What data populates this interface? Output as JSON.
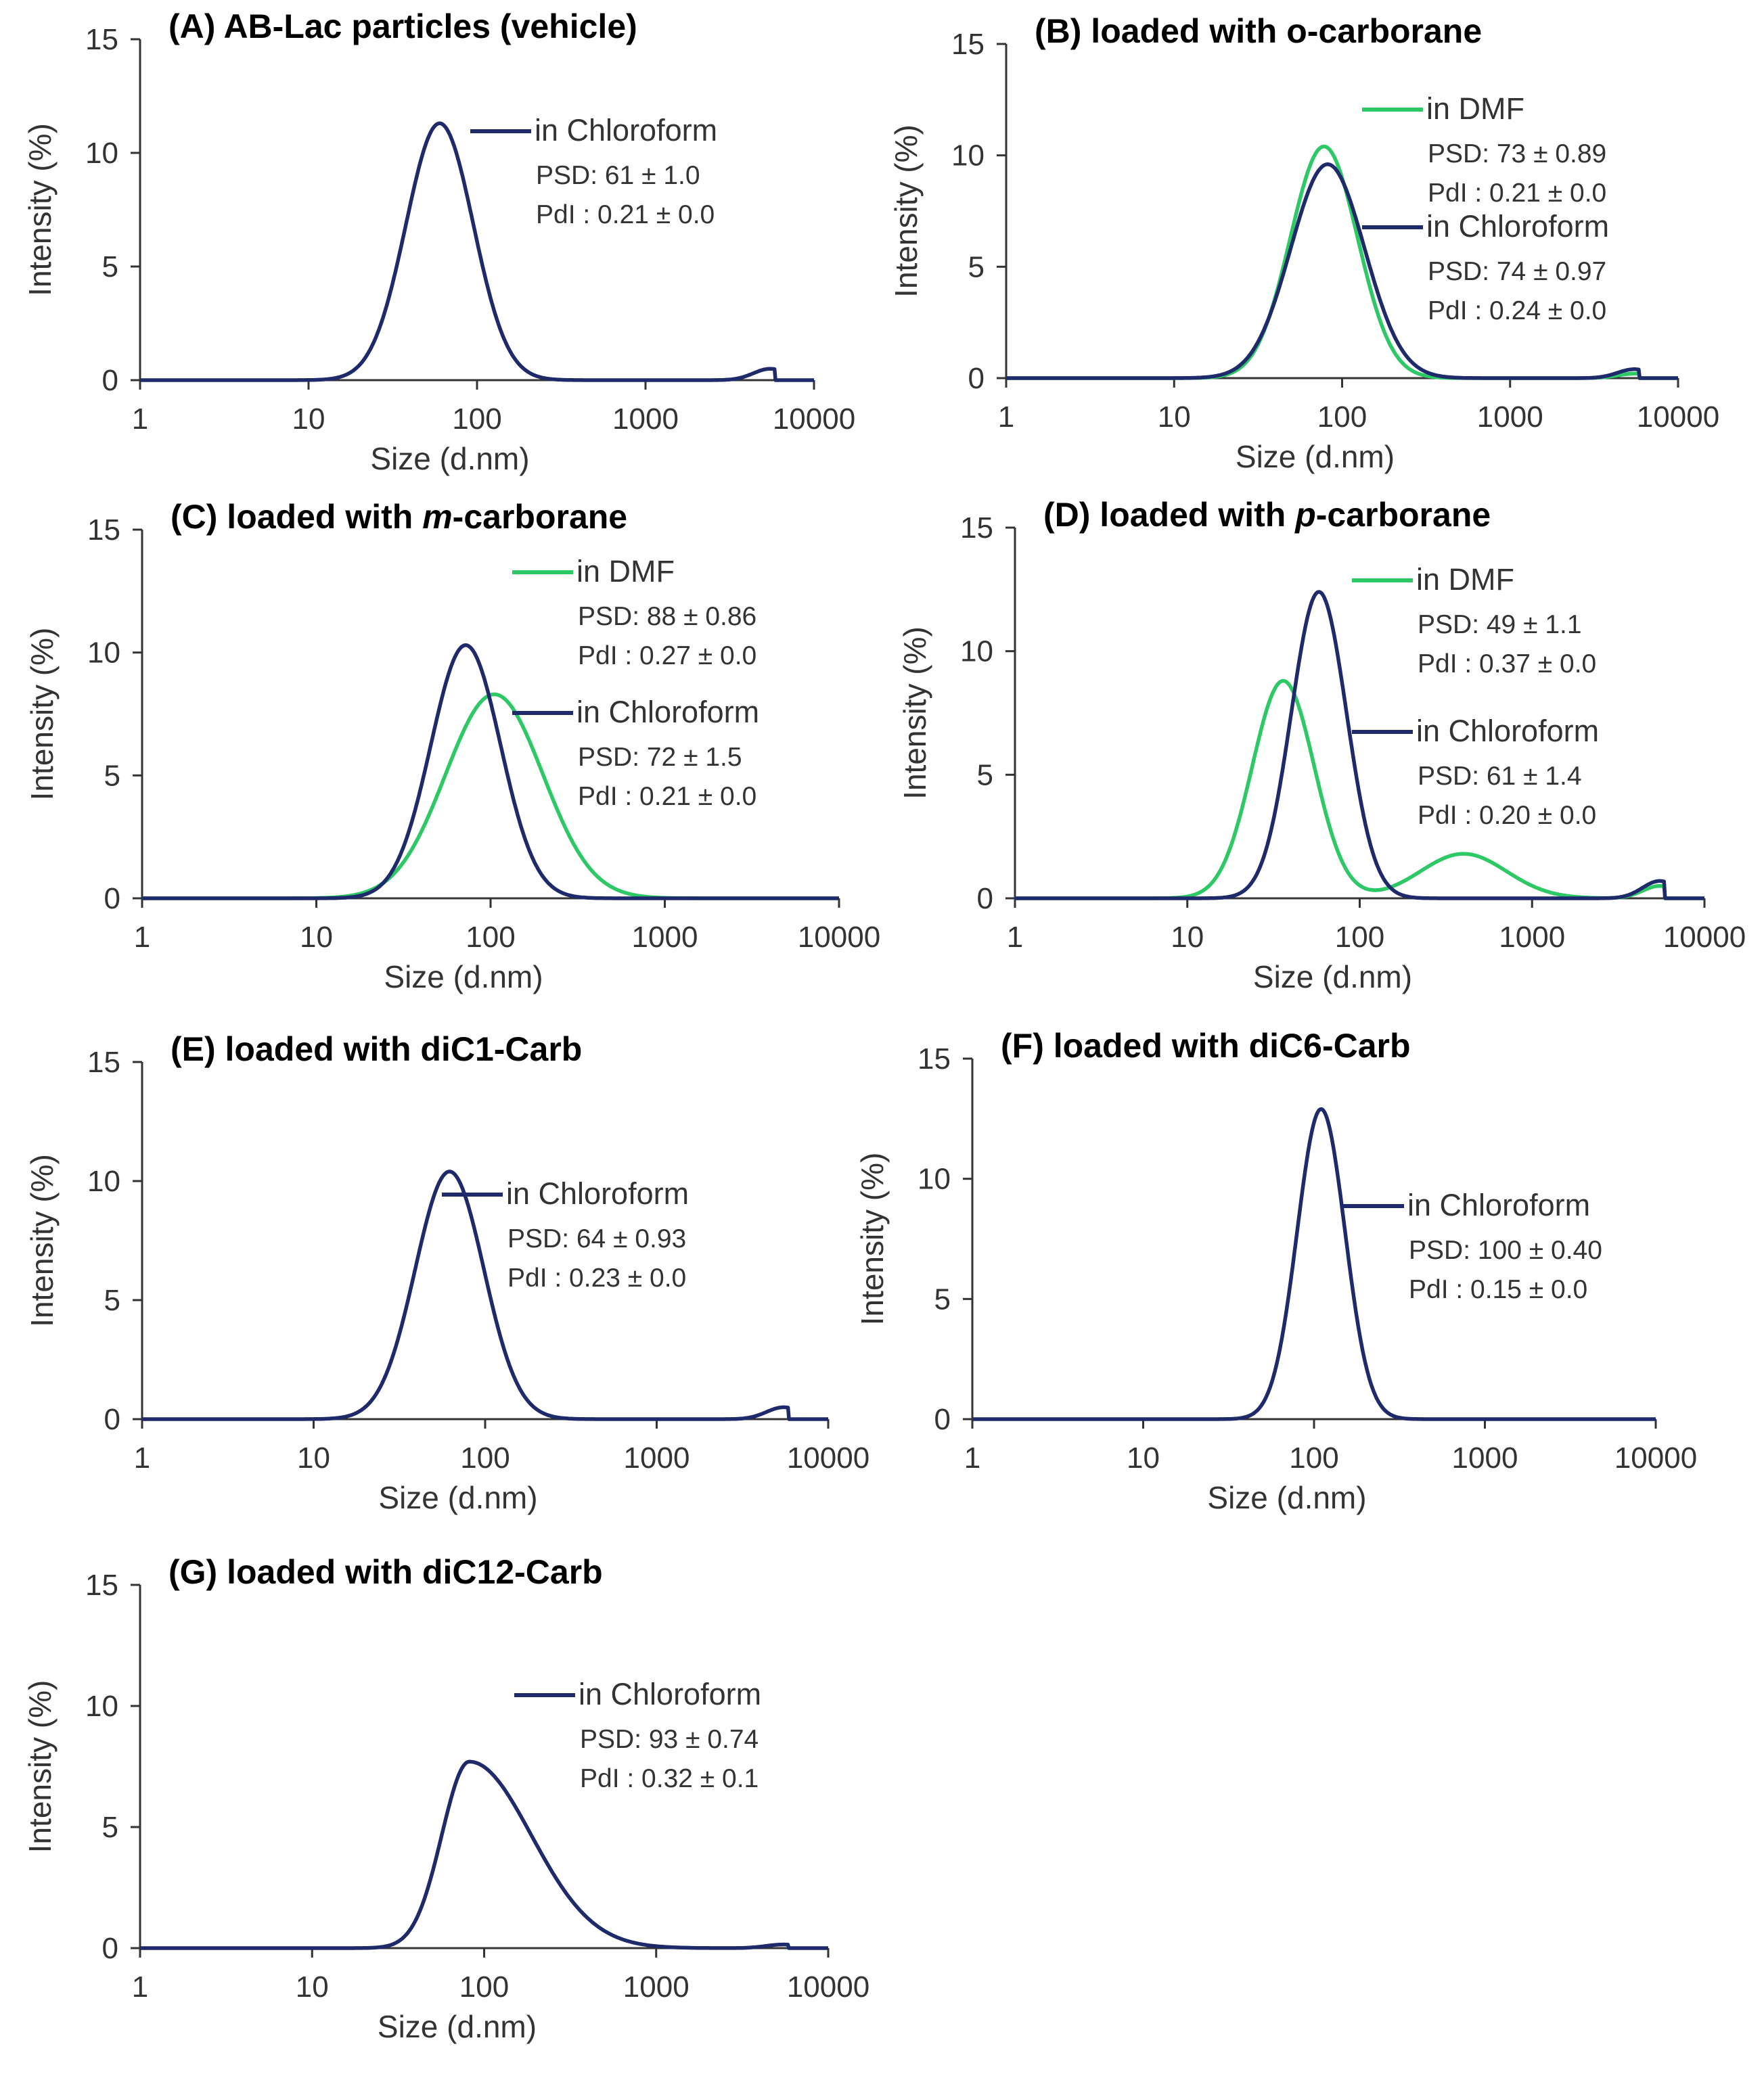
{
  "colors": {
    "chloroform": "#1f2a6b",
    "dmf": "#2ec866",
    "axis": "#333333",
    "text": "#333333"
  },
  "chart_data": [
    {
      "type": "line",
      "title_prefix": "(A) AB-Lac particles (vehicle)",
      "title_italic": "",
      "title_suffix": "",
      "xlabel": "Size (d.nm)",
      "ylabel": "Intensity (%)",
      "xscale": "log",
      "xlim": [
        1,
        10000
      ],
      "ylim": [
        0,
        15
      ],
      "xticks": [
        "1",
        "10",
        "100",
        "1000",
        "10000"
      ],
      "yticks": [
        "0",
        "5",
        "10",
        "15"
      ],
      "series": [
        {
          "name": "in Chloroform",
          "color": "chloroform",
          "psd": "PSD: 61 ± 1.0",
          "pdi": "PdI : 0.21 ± 0.0",
          "peaks": [
            {
              "center": 60,
              "height": 11.3,
              "width": 0.2
            },
            {
              "center": 5500,
              "height": 0.5,
              "width": 0.1,
              "cut": true
            }
          ]
        }
      ]
    },
    {
      "type": "line",
      "title_prefix": "(B) loaded with o-carborane",
      "title_italic": "",
      "title_suffix": "",
      "xlabel": "Size (d.nm)",
      "ylabel": "Intensity (%)",
      "xscale": "log",
      "xlim": [
        1,
        10000
      ],
      "ylim": [
        0,
        15
      ],
      "xticks": [
        "1",
        "10",
        "100",
        "1000",
        "10000"
      ],
      "yticks": [
        "0",
        "5",
        "10",
        "15"
      ],
      "series": [
        {
          "name": "in DMF",
          "color": "dmf",
          "psd": "PSD: 73 ± 0.89",
          "pdi": "PdI : 0.21 ± 0.0",
          "peaks": [
            {
              "center": 78,
              "height": 10.4,
              "width": 0.2
            },
            {
              "center": 5500,
              "height": 0.2,
              "width": 0.1,
              "cut": true
            }
          ]
        },
        {
          "name": "in Chloroform",
          "color": "chloroform",
          "psd": "PSD: 74 ± 0.97",
          "pdi": "PdI : 0.24 ± 0.0",
          "peaks": [
            {
              "center": 82,
              "height": 9.6,
              "width": 0.22
            },
            {
              "center": 5500,
              "height": 0.4,
              "width": 0.1,
              "cut": true
            }
          ]
        }
      ]
    },
    {
      "type": "line",
      "title_prefix": "(C) loaded with ",
      "title_italic": "m",
      "title_suffix": "-carborane",
      "xlabel": "Size (d.nm)",
      "ylabel": "Intensity (%)",
      "xscale": "log",
      "xlim": [
        1,
        10000
      ],
      "ylim": [
        0,
        15
      ],
      "xticks": [
        "1",
        "10",
        "100",
        "1000",
        "10000"
      ],
      "yticks": [
        "0",
        "5",
        "10",
        "15"
      ],
      "series": [
        {
          "name": "in DMF",
          "color": "dmf",
          "psd": "PSD: 88 ± 0.86",
          "pdi": "PdI : 0.27 ± 0.0",
          "peaks": [
            {
              "center": 105,
              "height": 8.3,
              "width": 0.28
            }
          ]
        },
        {
          "name": "in Chloroform",
          "color": "chloroform",
          "psd": "PSD: 72 ± 1.5",
          "pdi": "PdI : 0.21 ± 0.0",
          "peaks": [
            {
              "center": 72,
              "height": 10.3,
              "width": 0.2
            }
          ]
        }
      ]
    },
    {
      "type": "line",
      "title_prefix": "(D) loaded with ",
      "title_italic": "p",
      "title_suffix": "-carborane",
      "xlabel": "Size (d.nm)",
      "ylabel": "Intensity (%)",
      "xscale": "log",
      "xlim": [
        1,
        10000
      ],
      "ylim": [
        0,
        15
      ],
      "xticks": [
        "1",
        "10",
        "100",
        "1000",
        "10000"
      ],
      "yticks": [
        "0",
        "5",
        "10",
        "15"
      ],
      "series": [
        {
          "name": "in DMF",
          "color": "dmf",
          "psd": "PSD: 49 ± 1.1",
          "pdi": "PdI : 0.37 ± 0.0",
          "peaks": [
            {
              "center": 36,
              "height": 8.8,
              "width": 0.18
            },
            {
              "center": 400,
              "height": 1.8,
              "width": 0.25
            },
            {
              "center": 5500,
              "height": 0.5,
              "width": 0.1,
              "cut": true
            }
          ]
        },
        {
          "name": "in Chloroform",
          "color": "chloroform",
          "psd": "PSD: 61 ± 1.4",
          "pdi": "PdI : 0.20 ± 0.0",
          "peaks": [
            {
              "center": 58,
              "height": 12.4,
              "width": 0.16
            },
            {
              "center": 5500,
              "height": 0.7,
              "width": 0.1,
              "cut": true
            }
          ]
        }
      ]
    },
    {
      "type": "line",
      "title_prefix": "(E) loaded with diC1-Carb",
      "title_italic": "",
      "title_suffix": "",
      "xlabel": "Size (d.nm)",
      "ylabel": "Intensity (%)",
      "xscale": "log",
      "xlim": [
        1,
        10000
      ],
      "ylim": [
        0,
        15
      ],
      "xticks": [
        "1",
        "10",
        "100",
        "1000",
        "10000"
      ],
      "yticks": [
        "0",
        "5",
        "10",
        "15"
      ],
      "series": [
        {
          "name": "in Chloroform",
          "color": "chloroform",
          "psd": "PSD: 64 ± 0.93",
          "pdi": "PdI : 0.23 ± 0.0",
          "peaks": [
            {
              "center": 62,
              "height": 10.4,
              "width": 0.2
            },
            {
              "center": 5500,
              "height": 0.5,
              "width": 0.1,
              "cut": true
            }
          ]
        }
      ]
    },
    {
      "type": "line",
      "title_prefix": "(F) loaded with diC6-Carb",
      "title_italic": "",
      "title_suffix": "",
      "xlabel": "Size (d.nm)",
      "ylabel": "Intensity (%)",
      "xscale": "log",
      "xlim": [
        1,
        10000
      ],
      "ylim": [
        0,
        15
      ],
      "xticks": [
        "1",
        "10",
        "100",
        "1000",
        "10000"
      ],
      "yticks": [
        "0",
        "5",
        "10",
        "15"
      ],
      "series": [
        {
          "name": "in Chloroform",
          "color": "chloroform",
          "psd": "PSD: 100 ± 0.40",
          "pdi": "PdI : 0.15 ± 0.0",
          "peaks": [
            {
              "center": 110,
              "height": 12.9,
              "width": 0.14
            }
          ]
        }
      ]
    },
    {
      "type": "line",
      "title_prefix": "(G) loaded with diC12-Carb",
      "title_italic": "",
      "title_suffix": "",
      "xlabel": "Size (d.nm)",
      "ylabel": "Intensity (%)",
      "xscale": "log",
      "xlim": [
        1,
        10000
      ],
      "ylim": [
        0,
        15
      ],
      "xticks": [
        "1",
        "10",
        "100",
        "1000",
        "10000"
      ],
      "yticks": [
        "0",
        "5",
        "10",
        "15"
      ],
      "series": [
        {
          "name": "in Chloroform",
          "color": "chloroform",
          "psd": "PSD: 93 ± 0.74",
          "pdi": "PdI : 0.32 ± 0.1",
          "peaks": [
            {
              "center": 82,
              "height": 7.7,
              "width": 0.16,
              "right_width": 0.36
            },
            {
              "center": 5500,
              "height": 0.15,
              "width": 0.1,
              "cut": true
            }
          ]
        }
      ]
    }
  ]
}
